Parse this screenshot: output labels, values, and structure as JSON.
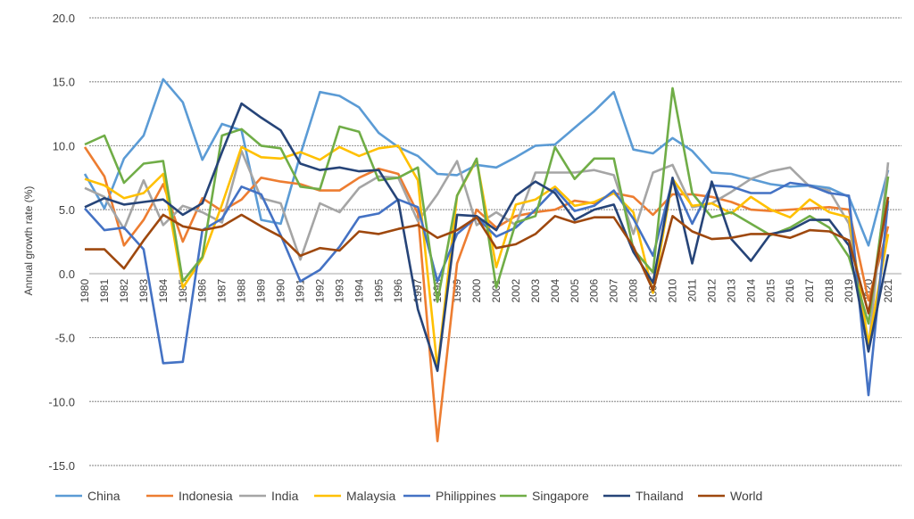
{
  "chart_data": {
    "type": "line",
    "title": "",
    "xlabel": "",
    "ylabel": "Annual growth rate (%)",
    "ylim": [
      -15,
      20
    ],
    "yticks": [
      "20.0",
      "15.0",
      "10.0",
      "5.0",
      "0.0",
      "-5.0",
      "-10.0",
      "-15.0"
    ],
    "grid": true,
    "legend_position": "bottom",
    "x": [
      "1980",
      "1981",
      "1982",
      "1983",
      "1984",
      "1985",
      "1986",
      "1987",
      "1988",
      "1989",
      "1990",
      "1991",
      "1992",
      "1993",
      "1994",
      "1995",
      "1996",
      "1997",
      "1998",
      "1999",
      "2000",
      "2001",
      "2002",
      "2003",
      "2004",
      "2005",
      "2006",
      "2007",
      "2008",
      "2009",
      "2010",
      "2011",
      "2012",
      "2013",
      "2014",
      "2015",
      "2016",
      "2017",
      "2018",
      "2019",
      "2020",
      "2021"
    ],
    "series": [
      {
        "name": "China",
        "color": "#5b9bd5",
        "values": [
          7.8,
          5.1,
          9.0,
          10.8,
          15.2,
          13.4,
          8.9,
          11.7,
          11.2,
          4.2,
          3.9,
          9.3,
          14.2,
          13.9,
          13.0,
          11.0,
          9.9,
          9.2,
          7.8,
          7.7,
          8.5,
          8.3,
          9.1,
          10.0,
          10.1,
          11.4,
          12.7,
          14.2,
          9.7,
          9.4,
          10.6,
          9.6,
          7.9,
          7.8,
          7.4,
          7.0,
          6.8,
          6.9,
          6.7,
          6.0,
          2.2,
          8.1
        ]
      },
      {
        "name": "Indonesia",
        "color": "#ed7d31",
        "values": [
          9.9,
          7.6,
          2.2,
          4.2,
          7.0,
          2.5,
          5.9,
          4.9,
          5.8,
          7.5,
          7.2,
          7.0,
          6.5,
          6.5,
          7.5,
          8.2,
          7.8,
          4.7,
          -13.1,
          0.8,
          5.0,
          3.6,
          4.5,
          4.8,
          5.0,
          5.7,
          5.5,
          6.3,
          6.0,
          4.6,
          6.2,
          6.2,
          6.0,
          5.6,
          5.0,
          4.9,
          5.0,
          5.1,
          5.2,
          5.0,
          -2.1,
          3.7
        ]
      },
      {
        "name": "India",
        "color": "#a5a5a5",
        "values": [
          6.7,
          6.0,
          3.5,
          7.3,
          3.8,
          5.3,
          4.8,
          4.0,
          9.6,
          5.9,
          5.5,
          1.1,
          5.5,
          4.8,
          6.7,
          7.6,
          7.5,
          4.1,
          6.2,
          8.8,
          3.8,
          4.8,
          3.8,
          7.9,
          7.9,
          7.9,
          8.1,
          7.7,
          3.1,
          7.9,
          8.5,
          5.2,
          5.5,
          6.4,
          7.4,
          8.0,
          8.3,
          6.8,
          6.5,
          3.9,
          -5.8,
          8.7
        ]
      },
      {
        "name": "Malaysia",
        "color": "#ffc000",
        "values": [
          7.4,
          6.9,
          5.9,
          6.3,
          7.8,
          -1.1,
          1.2,
          5.4,
          9.9,
          9.1,
          9.0,
          9.5,
          8.9,
          9.9,
          9.2,
          9.8,
          10.0,
          7.3,
          -7.4,
          6.1,
          8.9,
          0.5,
          5.4,
          5.8,
          6.8,
          5.3,
          5.6,
          6.3,
          4.8,
          -1.5,
          7.4,
          5.3,
          5.5,
          4.7,
          6.0,
          5.0,
          4.4,
          5.8,
          4.8,
          4.4,
          -5.5,
          3.1
        ]
      },
      {
        "name": "Philippines",
        "color": "#4472c4",
        "values": [
          5.1,
          3.4,
          3.6,
          1.9,
          -7.0,
          -6.9,
          3.4,
          4.3,
          6.8,
          6.2,
          3.0,
          -0.6,
          0.3,
          2.1,
          4.4,
          4.7,
          5.8,
          5.2,
          -0.6,
          3.1,
          4.4,
          2.9,
          3.6,
          5.0,
          6.6,
          4.9,
          5.3,
          6.5,
          4.3,
          1.4,
          7.3,
          3.9,
          6.9,
          6.8,
          6.3,
          6.3,
          7.1,
          6.9,
          6.3,
          6.1,
          -9.5,
          5.7
        ]
      },
      {
        "name": "Singapore",
        "color": "#70ad47",
        "values": [
          10.1,
          10.8,
          7.1,
          8.6,
          8.8,
          -0.6,
          1.3,
          10.8,
          11.3,
          10.0,
          9.8,
          6.8,
          6.6,
          11.5,
          11.1,
          7.3,
          7.5,
          8.3,
          -2.2,
          6.1,
          9.0,
          -1.1,
          4.0,
          4.5,
          9.9,
          7.4,
          9.0,
          9.0,
          1.9,
          0.1,
          14.5,
          6.3,
          4.4,
          4.8,
          3.9,
          3.0,
          3.6,
          4.5,
          3.6,
          1.3,
          -3.9,
          7.6
        ]
      },
      {
        "name": "Thailand",
        "color": "#264478",
        "values": [
          5.2,
          5.9,
          5.4,
          5.6,
          5.8,
          4.6,
          5.5,
          9.5,
          13.3,
          12.2,
          11.2,
          8.6,
          8.1,
          8.3,
          8.0,
          8.1,
          5.7,
          -2.8,
          -7.6,
          4.6,
          4.5,
          3.4,
          6.1,
          7.2,
          6.3,
          4.2,
          5.0,
          5.4,
          1.7,
          -0.7,
          7.5,
          0.8,
          7.2,
          2.7,
          1.0,
          3.1,
          3.4,
          4.2,
          4.2,
          2.2,
          -6.1,
          1.5
        ]
      },
      {
        "name": "World",
        "color": "#9e480e",
        "values": [
          1.9,
          1.9,
          0.4,
          2.6,
          4.6,
          3.7,
          3.4,
          3.7,
          4.6,
          3.7,
          2.9,
          1.4,
          2.0,
          1.8,
          3.3,
          3.1,
          3.5,
          3.8,
          2.8,
          3.4,
          4.4,
          2.0,
          2.3,
          3.1,
          4.5,
          4.0,
          4.4,
          4.4,
          2.1,
          -1.3,
          4.5,
          3.3,
          2.7,
          2.8,
          3.1,
          3.1,
          2.8,
          3.4,
          3.3,
          2.6,
          -3.1,
          6.0
        ]
      }
    ]
  }
}
